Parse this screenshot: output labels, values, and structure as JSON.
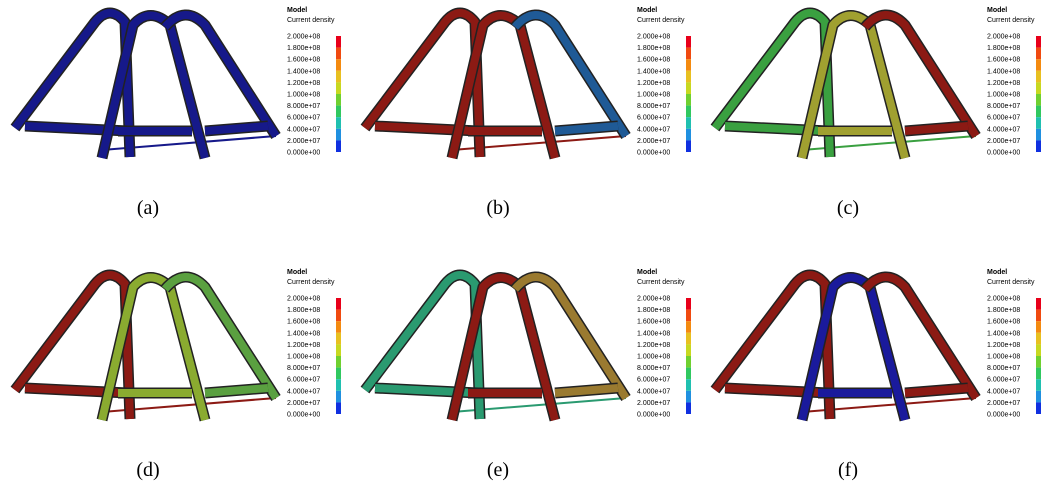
{
  "colorbar_colors": [
    "#e8001a",
    "#f04a10",
    "#f48a10",
    "#e8c020",
    "#c8d820",
    "#70d030",
    "#30c860",
    "#20c0b0",
    "#2090e0",
    "#1030e0"
  ],
  "panels": [
    {
      "caption": "(a)",
      "legend_title": "Model",
      "legend_subtitle": "Current density",
      "legend_labels": [
        "2.000e+08",
        "1.800e+08",
        "1.600e+08",
        "1.400e+08",
        "1.200e+08",
        "1.000e+08",
        "8.000e+07",
        "6.000e+07",
        "4.000e+07",
        "2.000e+07",
        "0.000e+00"
      ],
      "coil_colors": [
        "#16198a",
        "#16198a",
        "#16198a"
      ]
    },
    {
      "caption": "(b)",
      "legend_title": "Model",
      "legend_subtitle": "Current density",
      "legend_labels": [
        "2.000e+08",
        "1.800e+08",
        "1.600e+08",
        "1.400e+08",
        "1.200e+08",
        "1.000e+08",
        "8.000e+07",
        "6.000e+07",
        "4.000e+07",
        "2.000e+07",
        "0.000e+00"
      ],
      "coil_colors": [
        "#8c1a14",
        "#8c1a14",
        "#1f5a96"
      ]
    },
    {
      "caption": "(c)",
      "legend_title": "Model",
      "legend_subtitle": "Current density",
      "legend_labels": [
        "2.000e+08",
        "1.800e+08",
        "1.600e+08",
        "1.400e+08",
        "1.200e+08",
        "1.000e+08",
        "8.000e+07",
        "6.000e+07",
        "4.000e+07",
        "2.000e+07",
        "0.000e+00"
      ],
      "coil_colors": [
        "#3aa040",
        "#a0a030",
        "#8c1a14"
      ]
    },
    {
      "caption": "(d)",
      "legend_title": "Model",
      "legend_subtitle": "Current density",
      "legend_labels": [
        "2.000e+08",
        "1.800e+08",
        "1.600e+08",
        "1.400e+08",
        "1.200e+08",
        "1.000e+08",
        "8.000e+07",
        "6.000e+07",
        "4.000e+07",
        "2.000e+07",
        "0.000e+00"
      ],
      "coil_colors": [
        "#8c1a14",
        "#8aab30",
        "#5aa040"
      ]
    },
    {
      "caption": "(e)",
      "legend_title": "Model",
      "legend_subtitle": "Current density",
      "legend_labels": [
        "2.000e+08",
        "1.800e+08",
        "1.600e+08",
        "1.400e+08",
        "1.200e+08",
        "1.000e+08",
        "8.000e+07",
        "6.000e+07",
        "4.000e+07",
        "2.000e+07",
        "0.000e+00"
      ],
      "coil_colors": [
        "#2a9a70",
        "#8c1a14",
        "#9a7a30"
      ]
    },
    {
      "caption": "(f)",
      "legend_title": "Model",
      "legend_subtitle": "Current density",
      "legend_labels": [
        "2.000e+08",
        "1.800e+08",
        "1.600e+08",
        "1.400e+08",
        "1.200e+08",
        "1.000e+08",
        "8.000e+07",
        "6.000e+07",
        "4.000e+07",
        "2.000e+07",
        "0.000e+00"
      ],
      "coil_colors": [
        "#8c1a14",
        "#1a1a9c",
        "#8c1a14"
      ]
    }
  ]
}
